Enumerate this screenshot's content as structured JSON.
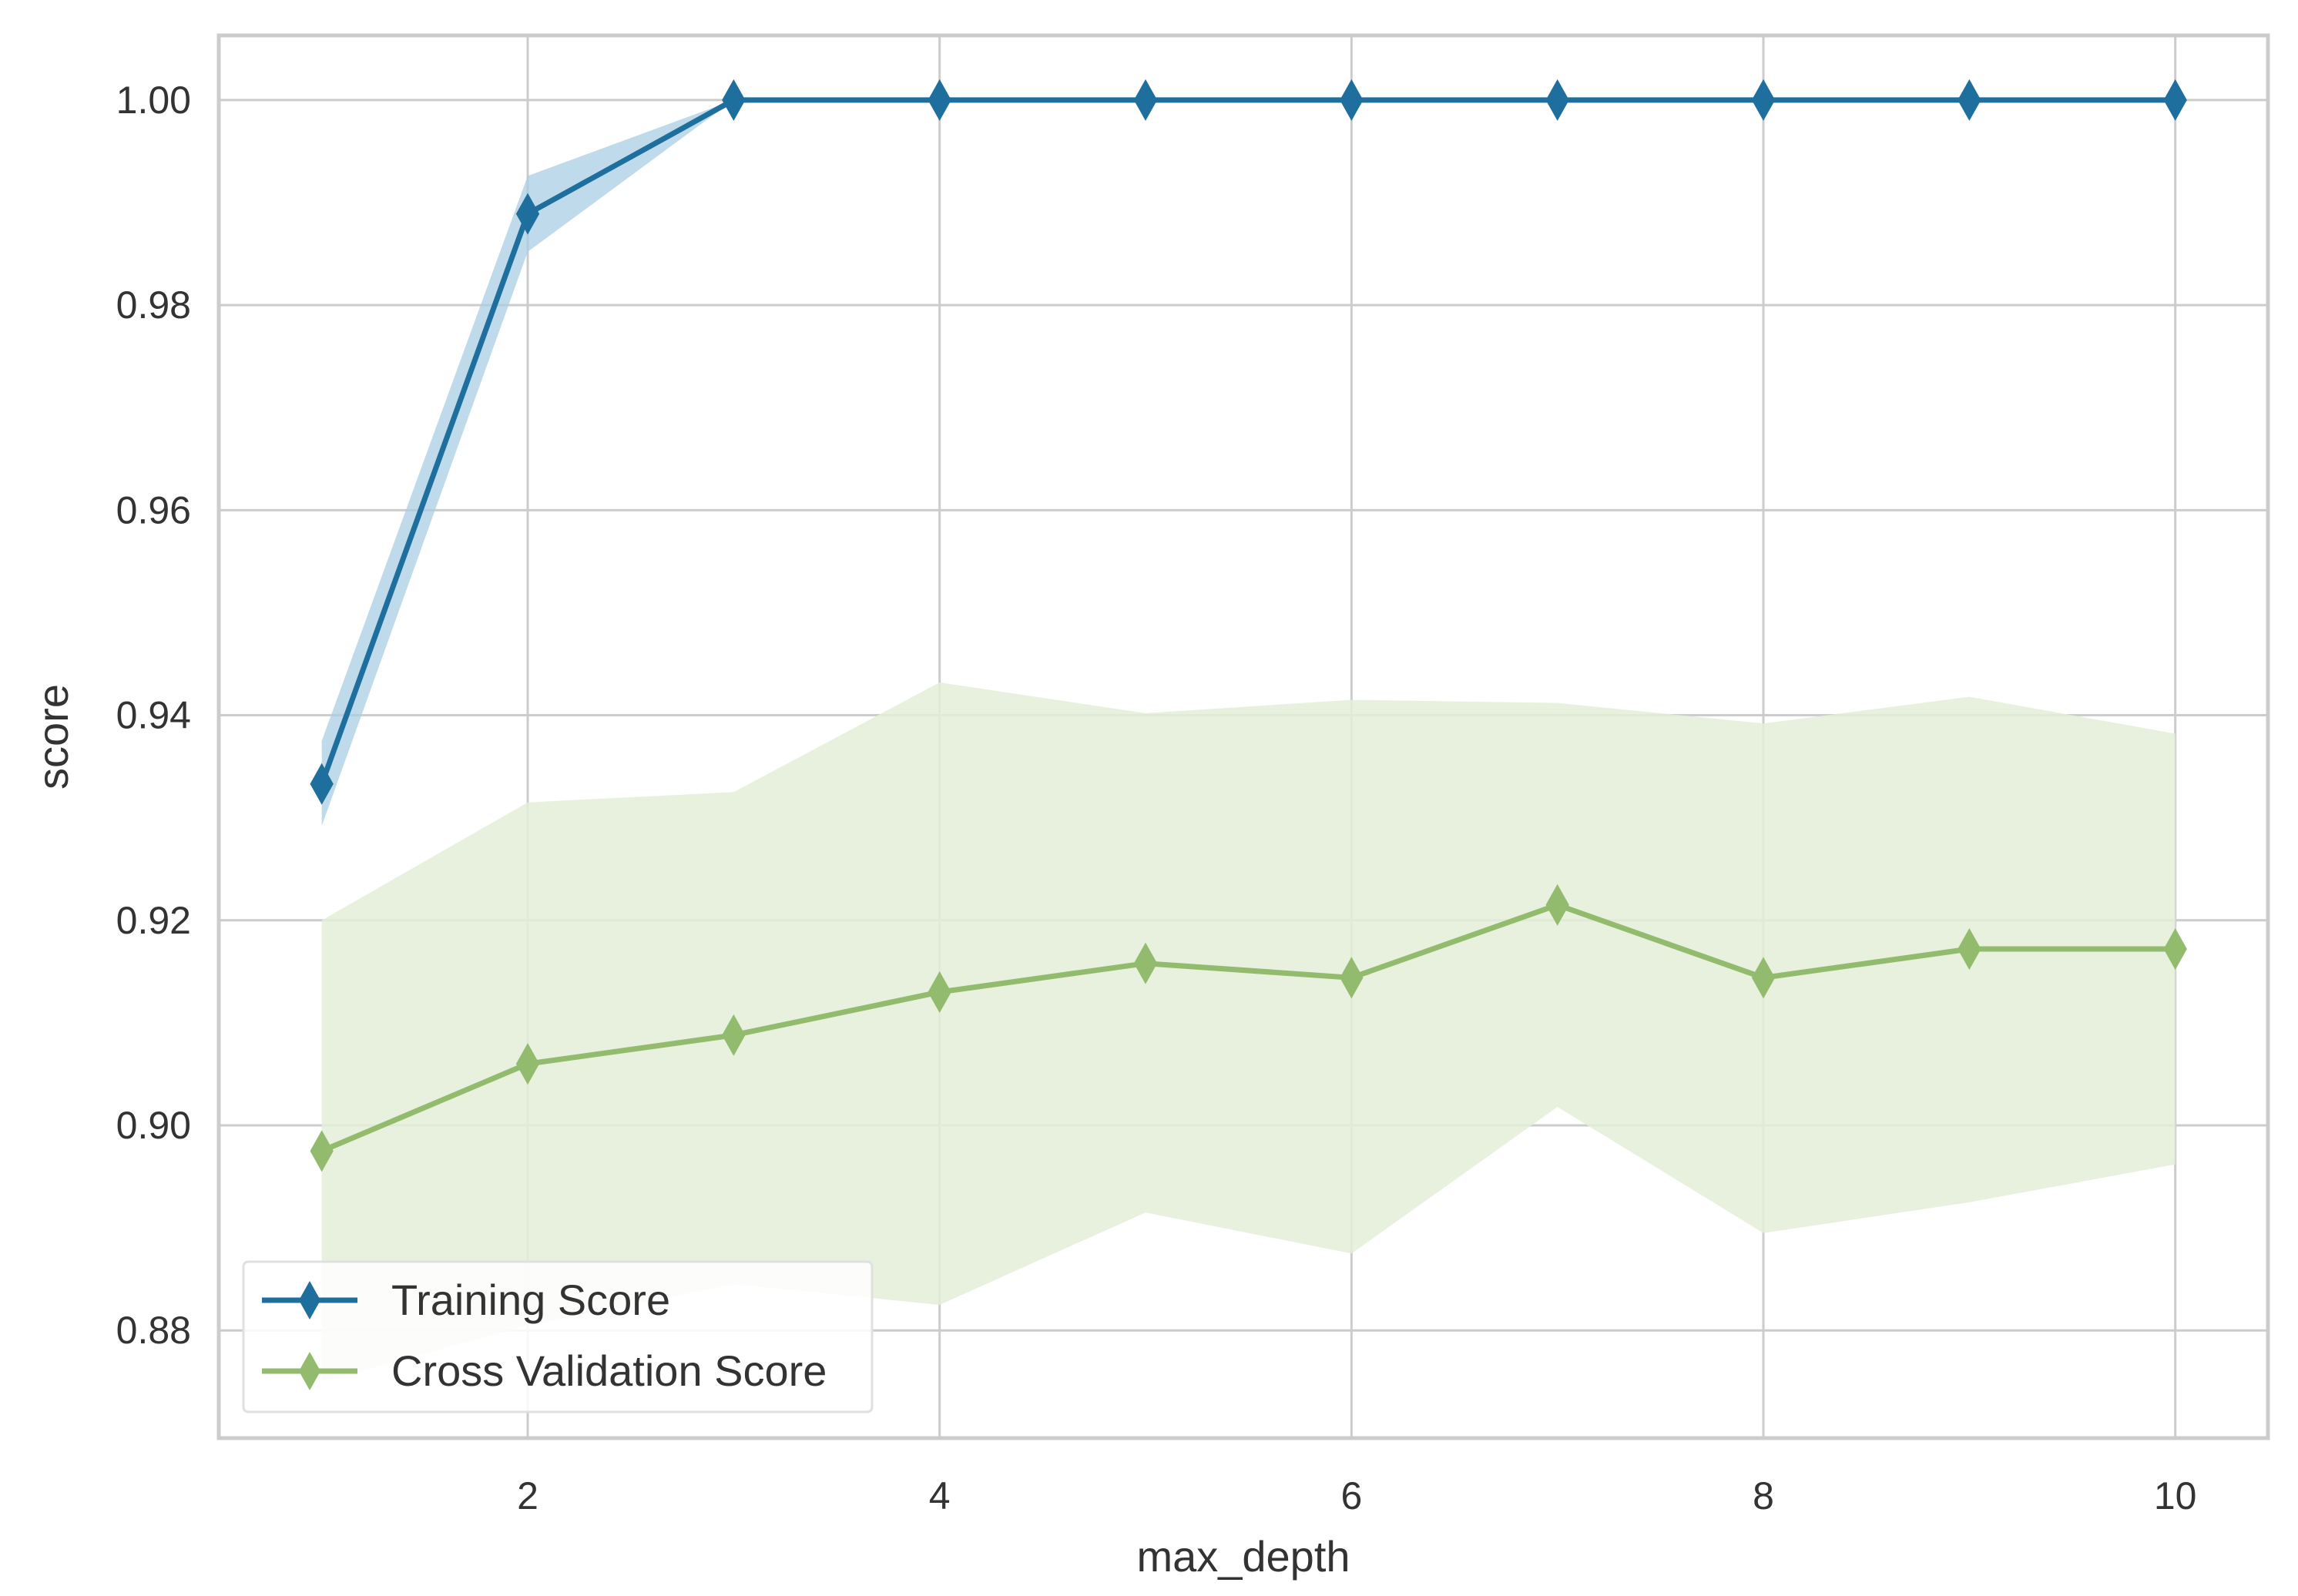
{
  "chart_data": {
    "type": "line",
    "title": "",
    "xlabel": "max_depth",
    "ylabel": "score",
    "xlim": [
      0.5,
      10.45
    ],
    "ylim": [
      0.8695,
      1.0063
    ],
    "xticks": [
      2,
      4,
      6,
      8,
      10
    ],
    "xtick_labels": [
      "2",
      "4",
      "6",
      "8",
      "10"
    ],
    "yticks": [
      0.88,
      0.9,
      0.92,
      0.94,
      0.96,
      0.98,
      1.0
    ],
    "ytick_labels": [
      "0.88",
      "0.90",
      "0.92",
      "0.94",
      "0.96",
      "0.98",
      "1.00"
    ],
    "grid": true,
    "legend_position": "lower-left",
    "x": [
      1,
      2,
      3,
      4,
      5,
      6,
      7,
      8,
      9,
      10
    ],
    "series": [
      {
        "name": "Training Score",
        "color": "#1f6f9e",
        "band_color": "#a9cde3",
        "marker": "diamond",
        "values": [
          0.9333,
          0.9889,
          1.0,
          1.0,
          1.0,
          1.0,
          1.0,
          1.0,
          1.0,
          1.0
        ],
        "lower": [
          0.9292,
          0.9852,
          1.0,
          1.0,
          1.0,
          1.0,
          1.0,
          1.0,
          1.0,
          1.0
        ],
        "upper": [
          0.9375,
          0.9926,
          1.0,
          1.0,
          1.0,
          1.0,
          1.0,
          1.0,
          1.0,
          1.0
        ]
      },
      {
        "name": "Cross Validation Score",
        "color": "#93bb6e",
        "band_color": "#e3eed8",
        "marker": "diamond",
        "values": [
          0.8975,
          0.906,
          0.9088,
          0.913,
          0.9158,
          0.9144,
          0.9215,
          0.9144,
          0.9172,
          0.9172
        ],
        "lower": [
          0.875,
          0.8805,
          0.8845,
          0.8825,
          0.8915,
          0.8875,
          0.9018,
          0.8895,
          0.8925,
          0.8962
        ],
        "upper": [
          0.92,
          0.9315,
          0.9325,
          0.9432,
          0.9402,
          0.9415,
          0.9412,
          0.9392,
          0.9418,
          0.9382
        ]
      }
    ]
  }
}
